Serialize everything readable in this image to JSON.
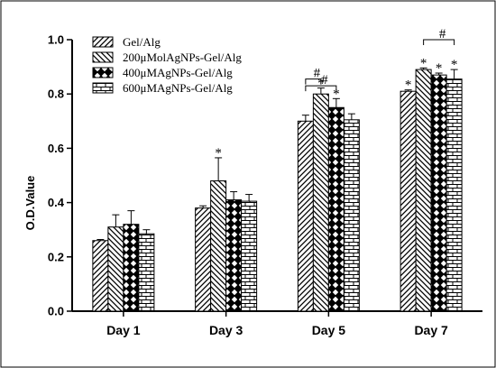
{
  "chart_data": {
    "type": "bar",
    "title": "",
    "xlabel": "",
    "ylabel": "O.D.Value",
    "ylim": [
      0,
      1.0
    ],
    "yticks": [
      "0.0",
      "0.2",
      "0.4",
      "0.6",
      "0.8",
      "1.0"
    ],
    "categories": [
      "Day 1",
      "Day 3",
      "Day 5",
      "Day 7"
    ],
    "legend_position": "top-left",
    "grid": false,
    "series": [
      {
        "name": "Gel/Alg",
        "pattern": "diag-right",
        "values": [
          0.26,
          0.38,
          0.7,
          0.81
        ],
        "errors": [
          0.004,
          0.008,
          0.022,
          0.005
        ],
        "stars": [
          false,
          false,
          false,
          true
        ]
      },
      {
        "name": "200μMolAgNPs-Gel/Alg",
        "pattern": "diag-left",
        "values": [
          0.31,
          0.48,
          0.8,
          0.89
        ],
        "errors": [
          0.045,
          0.085,
          0.022,
          0.006
        ],
        "stars": [
          false,
          true,
          true,
          true
        ]
      },
      {
        "name": "400μMAgNPs-Gel/Alg",
        "pattern": "checker",
        "values": [
          0.32,
          0.41,
          0.75,
          0.87
        ],
        "errors": [
          0.05,
          0.03,
          0.033,
          0.007
        ],
        "stars": [
          false,
          false,
          true,
          true
        ]
      },
      {
        "name": "600μMAgNPs-Gel/Alg",
        "pattern": "brick",
        "values": [
          0.285,
          0.405,
          0.705,
          0.855
        ],
        "errors": [
          0.015,
          0.025,
          0.022,
          0.035
        ],
        "stars": [
          false,
          false,
          false,
          true
        ]
      }
    ],
    "significance_symbol": "*",
    "brackets": [
      {
        "category": "Day 5",
        "from_series": 0,
        "to_series": 1,
        "level": 0.855,
        "label": "#"
      },
      {
        "category": "Day 5",
        "from_series": 0,
        "to_series": 2,
        "level": 0.83,
        "label": "#"
      },
      {
        "category": "Day 7",
        "from_series": 1,
        "to_series": 3,
        "level": 1.0,
        "label": "#"
      }
    ]
  }
}
